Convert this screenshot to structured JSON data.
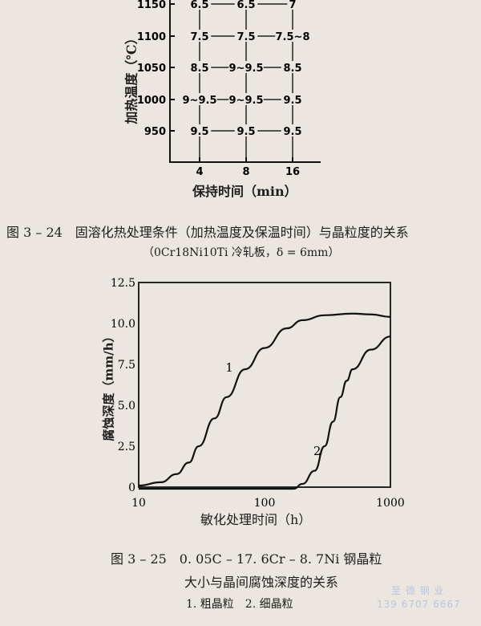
{
  "figure_3_24": {
    "caption": "图 3 – 24　固溶化热处理条件（加热温度及保温时间）与晶粒度的关系",
    "subcaption": "（0Cr18Ni10Ti 冷轧板，δ = 6mm）",
    "chart_data": {
      "type": "table",
      "ylabel": "加热温度（℃）",
      "xlabel": "保持时间（min）",
      "x_ticks": [
        "4",
        "8",
        "16"
      ],
      "y_ticks": [
        "1150",
        "1100",
        "1050",
        "1000",
        "950"
      ],
      "cells": [
        [
          "6.5",
          "6.5",
          "7"
        ],
        [
          "7.5",
          "7.5",
          "7.5~8"
        ],
        [
          "8.5",
          "9~9.5",
          "8.5"
        ],
        [
          "9~9.5",
          "9~9.5",
          "9.5"
        ],
        [
          "9.5",
          "9.5",
          "9.5"
        ]
      ]
    }
  },
  "figure_3_25": {
    "caption_line1": "图 3 – 25　0. 05C – 17. 6Cr – 8. 7Ni 钢晶粒",
    "caption_line2": "大小与晶间腐蚀深度的关系",
    "legend_text": "1. 粗晶粒　2. 细晶粒",
    "chart_data": {
      "type": "line",
      "xlabel": "敏化处理时间（h）",
      "ylabel": "腐蚀深度（mm/h）",
      "x_scale": "log",
      "xlim": [
        10,
        1000
      ],
      "ylim": [
        0,
        12.5
      ],
      "x_ticks": [
        "10",
        "100",
        "1000"
      ],
      "y_ticks": [
        "12.5",
        "10.0",
        "7.5",
        "5.0",
        "2.5",
        "0"
      ],
      "series": [
        {
          "name": "1",
          "x": [
            10,
            15,
            20,
            25,
            30,
            40,
            50,
            70,
            100,
            150,
            200,
            300,
            500,
            700,
            1000
          ],
          "y": [
            0.1,
            0.3,
            0.8,
            1.5,
            2.5,
            4.2,
            5.5,
            7.2,
            8.5,
            9.7,
            10.2,
            10.5,
            10.6,
            10.55,
            10.4
          ]
        },
        {
          "name": "2",
          "x": [
            10,
            100,
            170,
            200,
            250,
            300,
            350,
            400,
            450,
            500,
            700,
            1000
          ],
          "y": [
            -0.1,
            -0.1,
            -0.1,
            0.2,
            1.0,
            2.5,
            4.0,
            5.5,
            6.5,
            7.2,
            8.4,
            9.2
          ]
        }
      ]
    }
  },
  "watermark": {
    "line1": "至 德 钢 业",
    "line2": "139 6707 6667"
  }
}
